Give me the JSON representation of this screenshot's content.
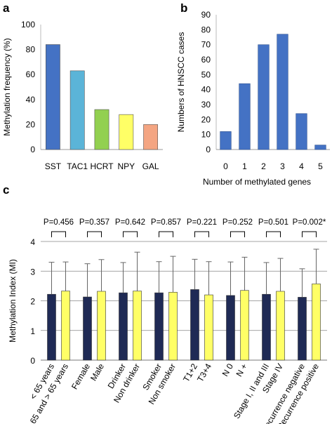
{
  "chart_data": [
    {
      "panel": "a",
      "type": "bar",
      "categories": [
        "SST",
        "TAC1",
        "HCRT",
        "NPY",
        "GAL"
      ],
      "values": [
        84,
        63,
        32,
        28,
        20
      ],
      "colors": [
        "#4472c4",
        "#5bb4d8",
        "#92d050",
        "#ffff66",
        "#f4a582"
      ],
      "ylabel": "Methylation frequency (%)",
      "ylim": [
        0,
        100
      ],
      "yticks": [
        0,
        20,
        40,
        60,
        80,
        100
      ],
      "grid": false
    },
    {
      "panel": "b",
      "type": "bar",
      "categories": [
        "0",
        "1",
        "2",
        "3",
        "4",
        "5"
      ],
      "values": [
        12,
        44,
        70,
        77,
        24,
        3
      ],
      "color": "#4472c4",
      "xlabel": "Number of methylated genes",
      "ylabel": "Numbers of HNSCC cases",
      "ylim": [
        0,
        90
      ],
      "yticks": [
        0,
        10,
        20,
        30,
        40,
        50,
        60,
        70,
        80,
        90
      ],
      "grid": false
    },
    {
      "panel": "c",
      "type": "bar",
      "categories": [
        "< 65 years",
        "65 and > 65 years",
        "Female",
        "Male",
        "Drinker",
        "Non drinker",
        "Smoker",
        "Non smoker",
        "T1+2",
        "T3+4",
        "N 0",
        "N +",
        "Stage I, II and III",
        "Stage IV",
        "Recurrence negative",
        "Recurrence positive"
      ],
      "values": [
        2.22,
        2.33,
        2.13,
        2.32,
        2.27,
        2.33,
        2.27,
        2.29,
        2.38,
        2.2,
        2.18,
        2.35,
        2.22,
        2.32,
        2.12,
        2.57
      ],
      "errors": [
        1.08,
        0.98,
        1.12,
        1.07,
        1.02,
        1.31,
        1.05,
        1.21,
        1.02,
        1.12,
        1.13,
        1.12,
        1.07,
        1.11,
        0.96,
        1.17
      ],
      "colors": [
        "#1f2a55",
        "#ffff66"
      ],
      "ylabel": "Methylation Index (MI)",
      "ylim": [
        0,
        4
      ],
      "yticks": [
        0,
        1,
        2,
        3,
        4
      ],
      "grid": true,
      "pvalues": [
        "P=0.456",
        "P=0.357",
        "P=0.642",
        "P=0.857",
        "P=0.221",
        "P=0.252",
        "P=0.501",
        "P=0.002*"
      ]
    }
  ],
  "panels": {
    "a": "a",
    "b": "b",
    "c": "c"
  }
}
